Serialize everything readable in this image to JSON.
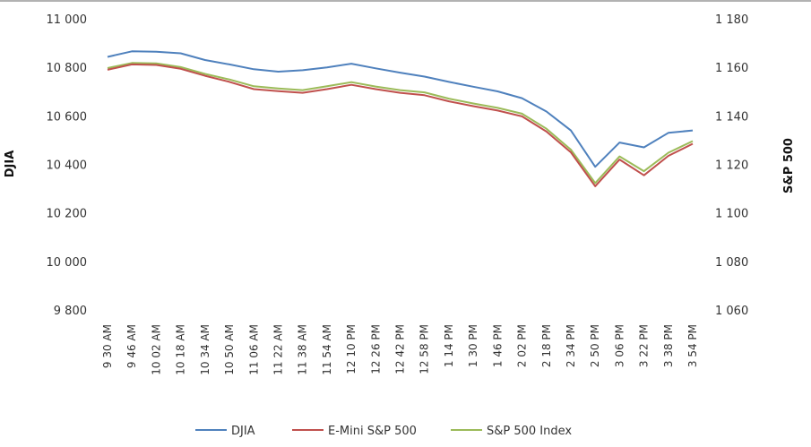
{
  "chart_data": {
    "type": "line",
    "title": "",
    "xlabel": "",
    "ylabel": "DJIA",
    "y2label": "S&P 500",
    "ylim": [
      9800,
      11000
    ],
    "y2lim": [
      1060,
      1180
    ],
    "yticks": [
      "9 800",
      "10 000",
      "10 200",
      "10 400",
      "10 600",
      "10 800",
      "11 000"
    ],
    "y2ticks": [
      "1 060",
      "1 080",
      "1 100",
      "1 120",
      "1 140",
      "1 160",
      "1 180"
    ],
    "categories": [
      "9 30 AM",
      "9 46 AM",
      "10 02 AM",
      "10 18 AM",
      "10 34 AM",
      "10 50 AM",
      "11 06 AM",
      "11 22 AM",
      "11 38 AM",
      "11 54 AM",
      "12 10 PM",
      "12 26 PM",
      "12 42 PM",
      "12 58 PM",
      "1 14 PM",
      "1 30 PM",
      "1 46 PM",
      "2 02 PM",
      "2 18 PM",
      "2 34 PM",
      "2 50 PM",
      "3 06 PM",
      "3 22 PM",
      "3 38 PM",
      "3 54 PM"
    ],
    "legend": "bottom",
    "grid": false,
    "series": [
      {
        "name": "DJIA",
        "axis": "left",
        "color": "#4f81bd",
        "values": [
          10843,
          10866,
          10864,
          10858,
          10830,
          10812,
          10792,
          10782,
          10788,
          10800,
          10815,
          10796,
          10778,
          10762,
          10740,
          10720,
          10701,
          10673,
          10618,
          10540,
          10390,
          10490,
          10470,
          10530,
          10540
        ]
      },
      {
        "name": "E-Mini S&P 500",
        "axis": "right",
        "color": "#c0504d",
        "values": [
          1159.0,
          1161.2,
          1161.0,
          1159.4,
          1156.5,
          1154.0,
          1151.0,
          1150.2,
          1149.5,
          1151.0,
          1152.8,
          1151.0,
          1149.5,
          1148.5,
          1146.0,
          1144.0,
          1142.2,
          1139.8,
          1133.5,
          1125.0,
          1111.0,
          1122.0,
          1115.5,
          1123.5,
          1128.5
        ]
      },
      {
        "name": "S&P 500 Index",
        "axis": "right",
        "color": "#9bbb59",
        "values": [
          1159.7,
          1161.8,
          1161.6,
          1160.1,
          1157.3,
          1155.0,
          1152.2,
          1151.3,
          1150.6,
          1152.2,
          1153.9,
          1152.1,
          1150.6,
          1149.7,
          1147.1,
          1145.1,
          1143.3,
          1140.9,
          1134.7,
          1126.1,
          1112.3,
          1123.3,
          1117.2,
          1124.8,
          1129.6
        ]
      }
    ]
  }
}
